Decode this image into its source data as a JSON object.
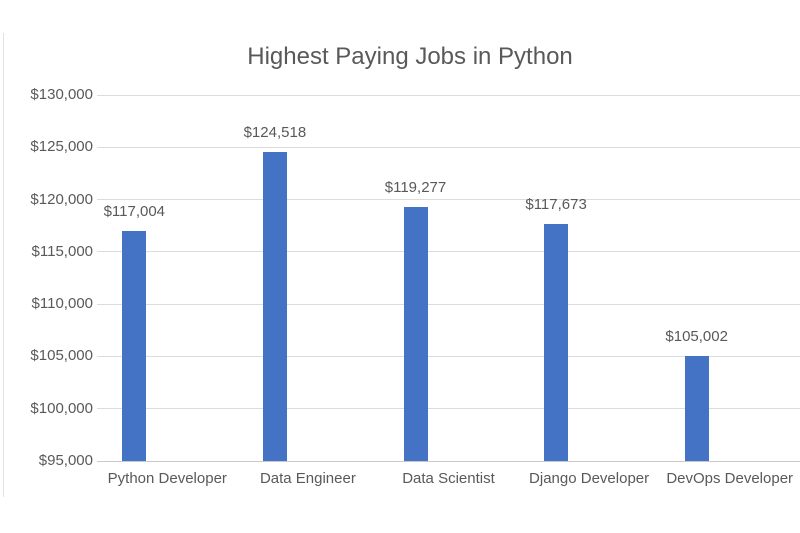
{
  "chart_data": {
    "type": "bar",
    "title": "Highest Paying Jobs in Python",
    "categories": [
      "Python Developer",
      "Data Engineer",
      "Data Scientist",
      "Django Developer",
      "DevOps Developer"
    ],
    "values": [
      117004,
      124518,
      119277,
      117673,
      105002
    ],
    "data_labels": [
      "$117,004",
      "$124,518",
      "$119,277",
      "$117,673",
      "$105,002"
    ],
    "xlabel": "",
    "ylabel": "",
    "ylim": [
      95000,
      130000
    ],
    "y_tick_step": 5000,
    "y_tick_labels": [
      "$95,000",
      "$100,000",
      "$105,000",
      "$110,000",
      "$115,000",
      "$120,000",
      "$125,000",
      "$130,000"
    ],
    "grid": true,
    "legend": "none",
    "colors": {
      "bar": "#4472C4",
      "title_text": "#595959",
      "axis_text": "#595959",
      "gridline": "#DCDCDC",
      "axis_line": "#C9C9C9",
      "background": "#FFFFFF"
    }
  }
}
